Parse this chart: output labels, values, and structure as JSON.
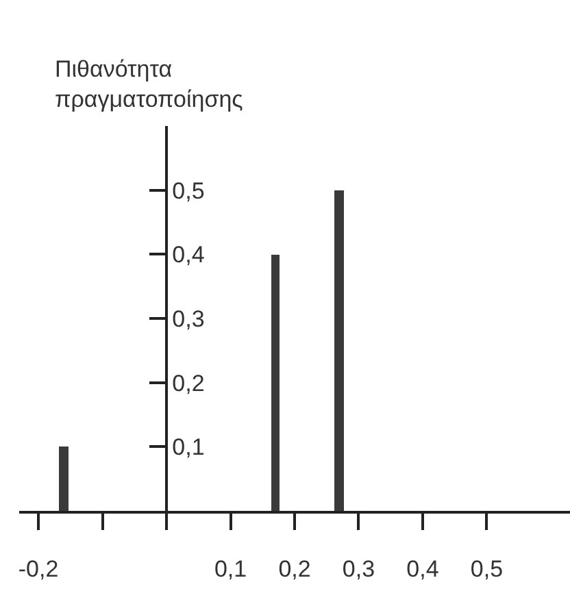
{
  "chart_data": {
    "type": "bar",
    "ylabel": "Πιθανότητα πραγματοποίησης",
    "x": [
      -0.16,
      0.17,
      0.27
    ],
    "values": [
      0.1,
      0.4,
      0.5
    ],
    "color": "#3a3a3a",
    "xlim": [
      -0.23,
      0.63
    ],
    "xticks": [
      {
        "value": -0.2,
        "label": "-0,2"
      },
      {
        "value": -0.1,
        "label": null
      },
      {
        "value": 0,
        "label": null
      },
      {
        "value": 0.1,
        "label": "0,1"
      },
      {
        "value": 0.2,
        "label": "0,2"
      },
      {
        "value": 0.3,
        "label": "0,3"
      },
      {
        "value": 0.4,
        "label": "0,4"
      },
      {
        "value": 0.5,
        "label": "0,5"
      }
    ],
    "ylim": [
      0,
      0.6
    ],
    "yticks": [
      {
        "value": 0.1,
        "label": "0,1"
      },
      {
        "value": 0.2,
        "label": "0,2"
      },
      {
        "value": 0.3,
        "label": "0,3"
      },
      {
        "value": 0.4,
        "label": "0,4"
      },
      {
        "value": 0.5,
        "label": "0,5"
      }
    ]
  }
}
